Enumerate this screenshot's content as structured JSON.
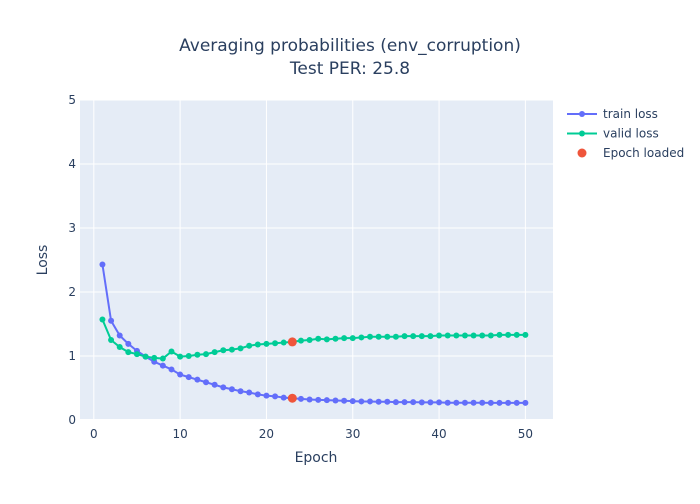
{
  "chart_data": {
    "type": "line",
    "title": "Averaging probabilities (env_corruption)",
    "subtitle": "Test PER: 25.8",
    "xlabel": "Epoch",
    "ylabel": "Loss",
    "xlim": [
      -1.6,
      53.2
    ],
    "ylim": [
      0,
      5
    ],
    "xticks": [
      0,
      10,
      20,
      30,
      40,
      50
    ],
    "yticks": [
      0,
      1,
      2,
      3,
      4,
      5
    ],
    "legend_position": "top-right",
    "x": [
      1,
      2,
      3,
      4,
      5,
      6,
      7,
      8,
      9,
      10,
      11,
      12,
      13,
      14,
      15,
      16,
      17,
      18,
      19,
      20,
      21,
      22,
      23,
      24,
      25,
      26,
      27,
      28,
      29,
      30,
      31,
      32,
      33,
      34,
      35,
      36,
      37,
      38,
      39,
      40,
      41,
      42,
      43,
      44,
      45,
      46,
      47,
      48,
      49,
      50
    ],
    "series": [
      {
        "name": "train loss",
        "color": "#636efa",
        "values": [
          2.43,
          1.55,
          1.32,
          1.19,
          1.08,
          0.99,
          0.91,
          0.85,
          0.79,
          0.71,
          0.67,
          0.63,
          0.59,
          0.55,
          0.51,
          0.48,
          0.45,
          0.43,
          0.4,
          0.38,
          0.37,
          0.35,
          0.34,
          0.33,
          0.32,
          0.315,
          0.31,
          0.305,
          0.3,
          0.295,
          0.29,
          0.29,
          0.285,
          0.285,
          0.28,
          0.28,
          0.28,
          0.275,
          0.275,
          0.275,
          0.27,
          0.27,
          0.27,
          0.27,
          0.27,
          0.268,
          0.268,
          0.267,
          0.267,
          0.267
        ]
      },
      {
        "name": "valid loss",
        "color": "#00cc96",
        "values": [
          1.57,
          1.25,
          1.14,
          1.06,
          1.03,
          0.99,
          0.97,
          0.96,
          1.07,
          0.99,
          1.0,
          1.02,
          1.03,
          1.06,
          1.09,
          1.1,
          1.12,
          1.16,
          1.18,
          1.19,
          1.2,
          1.21,
          1.22,
          1.24,
          1.25,
          1.27,
          1.26,
          1.27,
          1.28,
          1.28,
          1.29,
          1.3,
          1.3,
          1.3,
          1.3,
          1.31,
          1.31,
          1.31,
          1.31,
          1.32,
          1.32,
          1.32,
          1.32,
          1.32,
          1.32,
          1.32,
          1.33,
          1.33,
          1.33,
          1.33
        ]
      },
      {
        "name": "Epoch loaded",
        "color": "#ef553b",
        "mode": "markers",
        "x": [
          23,
          23
        ],
        "values": [
          1.22,
          0.34
        ]
      }
    ]
  }
}
